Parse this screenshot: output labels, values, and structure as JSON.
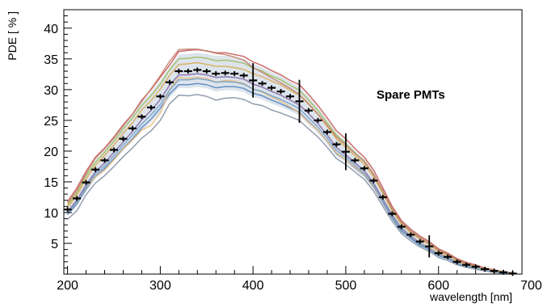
{
  "chart_data": {
    "type": "line",
    "xlabel": "wavelength [nm]",
    "ylabel": "PDE [ % ]",
    "annotation": "Spare PMTs",
    "xlim": [
      196,
      690
    ],
    "ylim": [
      0,
      43
    ],
    "xticks": [
      200,
      300,
      400,
      500,
      600,
      700
    ],
    "yticks": [
      5,
      10,
      15,
      20,
      25,
      30,
      35,
      40
    ],
    "grid": false,
    "x": [
      200,
      210,
      220,
      230,
      240,
      250,
      260,
      270,
      280,
      290,
      300,
      310,
      320,
      330,
      340,
      350,
      360,
      370,
      380,
      390,
      400,
      410,
      420,
      430,
      440,
      450,
      460,
      470,
      480,
      490,
      500,
      510,
      520,
      530,
      540,
      550,
      560,
      570,
      580,
      590,
      600,
      610,
      620,
      630,
      640,
      650,
      660,
      670,
      680
    ],
    "mean": [
      10.5,
      12.3,
      14.9,
      17.0,
      18.5,
      20.2,
      22.0,
      23.7,
      25.6,
      27.1,
      28.9,
      31.2,
      33.0,
      33.0,
      33.2,
      33.0,
      32.6,
      32.7,
      32.6,
      32.3,
      31.5,
      31.0,
      30.3,
      29.7,
      28.9,
      28.1,
      26.6,
      25.0,
      23.1,
      21.1,
      19.9,
      18.5,
      17.2,
      15.2,
      12.5,
      9.8,
      7.7,
      6.4,
      5.3,
      4.5,
      3.4,
      2.8,
      2.0,
      1.5,
      1.2,
      0.8,
      0.5,
      0.3,
      0.1
    ],
    "mean_error": [
      0.3,
      0.3,
      0.3,
      0.3,
      0.3,
      0.3,
      0.3,
      0.3,
      0.3,
      0.3,
      0.3,
      0.4,
      0.4,
      0.4,
      0.4,
      0.4,
      0.4,
      0.4,
      0.4,
      0.4,
      2.8,
      0.4,
      0.4,
      0.4,
      0.4,
      3.5,
      0.4,
      0.4,
      0.4,
      0.4,
      3.0,
      0.4,
      0.4,
      0.3,
      0.3,
      0.3,
      0.3,
      0.3,
      0.3,
      1.8,
      0.2,
      0.2,
      0.2,
      0.2,
      0.2,
      0.2,
      0.2,
      0.2,
      0.2
    ],
    "band_upper": [
      11.5,
      13.5,
      16.3,
      18.5,
      20.2,
      22.0,
      24.0,
      25.8,
      27.9,
      29.6,
      31.5,
      33.7,
      35.7,
      35.8,
      36.0,
      35.8,
      35.5,
      35.5,
      35.3,
      35.0,
      34.2,
      33.6,
      32.9,
      32.2,
      31.3,
      30.4,
      28.9,
      27.1,
      25.1,
      23.0,
      21.6,
      20.1,
      18.7,
      16.6,
      13.7,
      10.8,
      8.6,
      7.2,
      6.1,
      5.2,
      4.0,
      3.3,
      2.4,
      1.8,
      1.5,
      1.0,
      0.7,
      0.4,
      0.2
    ],
    "band_lower": [
      9.5,
      11.1,
      13.4,
      15.5,
      16.8,
      18.4,
      20.0,
      21.6,
      23.3,
      24.7,
      26.3,
      28.7,
      30.3,
      30.2,
      30.4,
      30.2,
      29.7,
      29.9,
      29.9,
      29.6,
      28.8,
      28.4,
      27.7,
      27.2,
      26.5,
      25.8,
      24.3,
      22.9,
      21.1,
      19.2,
      18.2,
      16.9,
      15.7,
      13.8,
      11.3,
      8.8,
      6.8,
      5.6,
      4.5,
      3.8,
      2.8,
      2.3,
      1.6,
      1.2,
      0.9,
      0.6,
      0.3,
      0.2,
      0.0
    ],
    "series": [
      {
        "color": "#c0504d",
        "values": [
          11.8,
          14.0,
          16.7,
          19.0,
          20.5,
          22.3,
          24.3,
          26.0,
          28.3,
          30.0,
          32.0,
          34.0,
          36.2,
          36.4,
          36.5,
          36.3,
          36.0,
          36.0,
          35.7,
          35.4,
          34.5,
          33.9,
          33.1,
          32.4,
          31.5,
          30.8,
          29.2,
          27.4,
          25.4,
          23.3,
          22.0,
          20.4,
          19.0,
          16.9,
          14.0,
          11.0,
          8.7,
          7.3,
          6.2,
          5.3,
          4.1,
          3.4,
          2.5,
          1.9,
          1.5,
          1.0,
          0.7,
          0.4,
          0.2
        ]
      },
      {
        "color": "#d9a84e",
        "values": [
          10.9,
          12.8,
          15.5,
          17.7,
          19.3,
          21.0,
          22.9,
          24.6,
          26.7,
          28.2,
          30.1,
          32.3,
          34.1,
          34.2,
          34.4,
          34.1,
          33.8,
          33.8,
          33.6,
          33.3,
          32.6,
          32.1,
          31.4,
          30.8,
          29.9,
          29.1,
          27.6,
          26.0,
          24.0,
          22.0,
          20.6,
          19.2,
          17.9,
          15.8,
          13.1,
          10.3,
          8.1,
          6.7,
          5.7,
          4.8,
          3.7,
          3.0,
          2.2,
          1.6,
          1.3,
          0.9,
          0.6,
          0.3,
          0.1
        ]
      },
      {
        "color": "#4f81bd",
        "values": [
          9.7,
          11.4,
          13.8,
          15.9,
          17.2,
          18.8,
          20.5,
          22.0,
          23.8,
          25.2,
          27.0,
          29.3,
          30.8,
          30.8,
          31.0,
          30.8,
          30.3,
          30.5,
          30.5,
          30.2,
          29.4,
          29.0,
          28.3,
          27.7,
          27.0,
          26.3,
          24.8,
          23.4,
          21.6,
          19.6,
          18.6,
          17.3,
          16.1,
          14.2,
          11.6,
          9.1,
          7.0,
          5.8,
          4.7,
          4.0,
          3.0,
          2.5,
          1.7,
          1.3,
          1.0,
          0.7,
          0.4,
          0.2,
          0.0
        ]
      },
      {
        "color": "#9bbb59",
        "values": [
          11.2,
          13.2,
          16.0,
          18.2,
          19.8,
          21.6,
          23.6,
          25.4,
          27.4,
          29.0,
          30.9,
          33.2,
          35.0,
          35.1,
          35.3,
          35.1,
          34.7,
          34.8,
          34.6,
          34.3,
          33.5,
          33.0,
          32.2,
          31.6,
          30.7,
          29.9,
          28.3,
          26.6,
          24.6,
          22.6,
          21.2,
          19.7,
          18.4,
          16.2,
          13.4,
          10.5,
          8.4,
          7.0,
          5.9,
          5.0,
          3.9,
          3.2,
          2.3,
          1.7,
          1.4,
          0.9,
          0.6,
          0.4,
          0.1
        ]
      },
      {
        "color": "#8064a2",
        "values": [
          10.2,
          12.0,
          14.5,
          16.6,
          18.1,
          19.8,
          21.5,
          23.2,
          25.1,
          26.6,
          28.4,
          30.7,
          32.4,
          32.4,
          32.6,
          32.4,
          32.0,
          32.1,
          32.0,
          31.7,
          30.9,
          30.4,
          29.7,
          29.1,
          28.3,
          27.5,
          26.1,
          24.5,
          22.6,
          20.6,
          19.4,
          18.1,
          16.8,
          14.8,
          12.2,
          9.6,
          7.5,
          6.2,
          5.1,
          4.3,
          3.3,
          2.7,
          1.9,
          1.4,
          1.1,
          0.8,
          0.5,
          0.3,
          0.1
        ]
      },
      {
        "color": "#7f8c9f",
        "values": [
          8.9,
          10.3,
          12.9,
          14.8,
          16.0,
          17.5,
          19.1,
          20.5,
          22.1,
          23.3,
          25.0,
          27.7,
          29.1,
          29.0,
          29.2,
          28.9,
          28.3,
          28.6,
          28.7,
          28.4,
          27.7,
          27.4,
          26.7,
          26.2,
          25.6,
          25.0,
          23.6,
          22.3,
          20.6,
          18.8,
          17.8,
          16.6,
          15.4,
          13.5,
          11.0,
          8.6,
          6.6,
          5.4,
          4.4,
          3.7,
          2.7,
          2.2,
          1.5,
          1.1,
          0.8,
          0.5,
          0.3,
          0.1,
          0.0
        ]
      },
      {
        "color": "#e7b97a",
        "values": [
          10.0,
          11.7,
          14.0,
          15.8,
          16.9,
          18.6,
          20.4,
          21.8,
          23.4,
          24.2,
          26.2,
          30.0,
          32.0,
          31.8,
          32.0,
          31.8,
          31.2,
          31.5,
          31.4,
          31.0,
          30.1,
          29.6,
          28.8,
          28.1,
          27.2,
          26.2,
          24.7,
          23.4,
          21.6,
          19.7,
          18.6,
          17.4,
          16.2,
          14.3,
          11.8,
          9.3,
          7.3,
          6.0,
          5.0,
          4.3,
          3.2,
          2.6,
          1.9,
          1.4,
          1.1,
          0.7,
          0.4,
          0.2,
          0.1
        ]
      },
      {
        "color": "#c27c6b",
        "values": [
          11.5,
          13.6,
          16.4,
          18.8,
          20.4,
          22.1,
          24.1,
          26.0,
          28.1,
          30.1,
          32.3,
          34.6,
          36.5,
          36.6,
          36.6,
          36.3,
          35.9,
          35.7,
          35.3,
          34.8,
          33.6,
          32.8,
          31.9,
          31.1,
          30.2,
          29.2,
          27.7,
          26.0,
          24.2,
          22.3,
          21.0,
          19.6,
          18.3,
          16.2,
          13.5,
          10.6,
          8.4,
          7.0,
          5.9,
          5.0,
          3.9,
          3.2,
          2.3,
          1.7,
          1.4,
          0.9,
          0.6,
          0.3,
          0.1
        ]
      },
      {
        "color": "#6f9fc9",
        "values": [
          9.9,
          11.8,
          14.1,
          16.3,
          17.6,
          19.3,
          21.0,
          22.6,
          24.4,
          25.9,
          27.6,
          29.9,
          31.6,
          31.6,
          31.8,
          31.6,
          31.2,
          31.3,
          31.2,
          30.9,
          30.1,
          29.7,
          29.0,
          28.4,
          27.7,
          26.9,
          25.4,
          23.9,
          22.1,
          20.1,
          19.0,
          17.7,
          16.4,
          14.5,
          11.9,
          9.3,
          7.3,
          6.0,
          4.9,
          4.1,
          3.1,
          2.6,
          1.8,
          1.3,
          1.0,
          0.7,
          0.4,
          0.2,
          0.0
        ]
      }
    ]
  }
}
